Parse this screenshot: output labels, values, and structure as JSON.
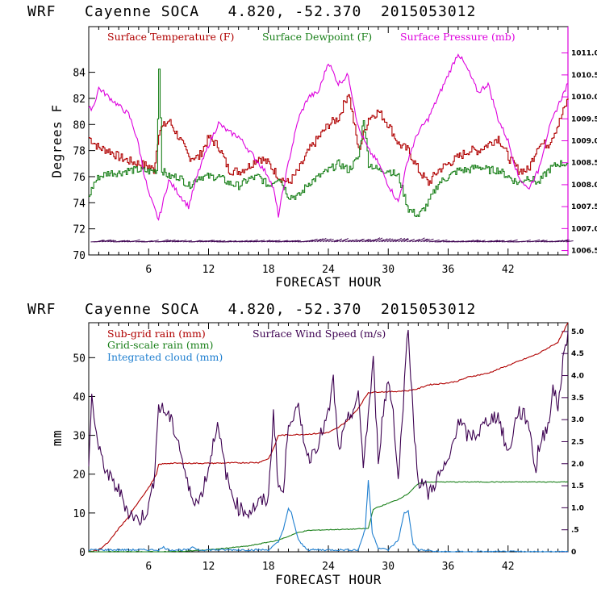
{
  "chart_data": [
    {
      "type": "line",
      "title": "WRF   Cayenne SOCA   4.820, -52.370  2015053012",
      "xlabel": "FORECAST HOUR",
      "ylabel": "Degrees F",
      "xlim": [
        0,
        48
      ],
      "ylim": [
        70,
        87.5
      ],
      "y2lim": [
        1006.4,
        1011.6
      ],
      "xticks": [
        "6",
        "12",
        "18",
        "24",
        "30",
        "36",
        "42"
      ],
      "yticks": [
        "70",
        "72",
        "74",
        "76",
        "78",
        "80",
        "82",
        "84"
      ],
      "y2ticks": [
        "1006.5",
        "1007.0",
        "1007.5",
        "1008.0",
        "1008.5",
        "1009.0",
        "1009.5",
        "1010.0",
        "1010.5",
        "1011.0"
      ],
      "colors": {
        "temperature": "#b00000",
        "dewpoint": "#1a801a",
        "pressure": "#dd00dd",
        "wind": "#3c0050"
      },
      "series": [
        {
          "name": "Surface Temperature (F)",
          "axis": "left",
          "x": [
            0,
            1,
            2,
            3,
            4,
            5,
            6,
            6.5,
            7,
            8,
            9,
            10,
            11,
            12,
            13,
            14,
            15,
            16,
            17,
            18,
            19,
            20,
            21,
            22,
            23,
            24,
            25,
            26,
            27,
            28,
            29,
            30,
            31,
            32,
            33,
            34,
            35,
            36,
            37,
            38,
            39,
            40,
            41,
            42,
            43,
            44,
            45,
            46,
            47,
            48
          ],
          "values": [
            79,
            78.2,
            78,
            77.5,
            77.2,
            77,
            76.8,
            76.5,
            79.5,
            80.3,
            79,
            77.5,
            77.5,
            79,
            78.3,
            76.5,
            76.4,
            76.8,
            77.5,
            77,
            76,
            75.5,
            76.5,
            78,
            79,
            80,
            80.5,
            82.5,
            78,
            80.5,
            81,
            80,
            78.5,
            78,
            76.5,
            75.5,
            76.5,
            77,
            77.5,
            78,
            78,
            78.5,
            79,
            77.5,
            76.5,
            76.5,
            78.5,
            78.5,
            80,
            82
          ]
        },
        {
          "name": "Surface Dewpoint (F)",
          "axis": "left",
          "x": [
            0,
            0.5,
            1,
            2,
            3,
            4,
            5,
            6,
            6.8,
            7,
            7.3,
            8,
            9,
            10,
            11,
            12,
            13,
            14,
            15,
            16,
            17,
            18,
            19,
            20,
            21,
            22,
            23,
            24,
            25,
            26,
            27,
            27.5,
            28,
            29,
            30,
            31,
            32,
            33,
            34,
            35,
            36,
            37,
            38,
            39,
            40,
            41,
            42,
            43,
            44,
            45,
            46,
            47,
            48
          ],
          "values": [
            74.5,
            75.5,
            76,
            76.3,
            76.3,
            76.5,
            76.5,
            76.4,
            76.5,
            84.5,
            76.5,
            76,
            76,
            75.3,
            76,
            76,
            76,
            75.5,
            75.3,
            75.8,
            76,
            75.3,
            76,
            74.5,
            74.5,
            75.5,
            76,
            76.5,
            77,
            76.5,
            77.5,
            80.5,
            77,
            76.5,
            76.5,
            76,
            73.5,
            73,
            74,
            75.5,
            76,
            76.5,
            76.5,
            76.8,
            76.5,
            76.5,
            76,
            75.5,
            76,
            75.5,
            76.5,
            77,
            77
          ]
        },
        {
          "name": "Surface Pressure (mb)",
          "axis": "right",
          "x": [
            0,
            0.5,
            1,
            2,
            3,
            4,
            4.5,
            5,
            5.5,
            6,
            7,
            8,
            9,
            10,
            11,
            12,
            13,
            14,
            15,
            16,
            17,
            18,
            18.5,
            19,
            20,
            21,
            22,
            23,
            24,
            25,
            26,
            27,
            28,
            29,
            30,
            31,
            32,
            33,
            34,
            35,
            36,
            37,
            38,
            39,
            40,
            41,
            42,
            43,
            44,
            45,
            46,
            47,
            48
          ],
          "values": [
            1009.7,
            1009.8,
            1010.2,
            1010.0,
            1009.8,
            1009.6,
            1009.3,
            1008.9,
            1008.3,
            1007.8,
            1007.2,
            1008.1,
            1007.8,
            1007.5,
            1008.3,
            1008.9,
            1009.4,
            1009.2,
            1009.1,
            1008.8,
            1008.5,
            1008.2,
            1007.9,
            1007.3,
            1008.5,
            1009.5,
            1010.0,
            1010.1,
            1010.8,
            1010.3,
            1010.5,
            1009.3,
            1008.8,
            1008.5,
            1008.0,
            1007.6,
            1008.6,
            1009.2,
            1009.5,
            1010.0,
            1010.5,
            1011.0,
            1010.6,
            1010.1,
            1010.3,
            1009.5,
            1009.0,
            1008.2,
            1007.9,
            1008.3,
            1009.2,
            1009.8,
            1010.3
          ]
        }
      ]
    },
    {
      "type": "line",
      "title": "WRF   Cayenne SOCA   4.820, -52.370  2015053012",
      "xlabel": "FORECAST HOUR",
      "ylabel": "mm",
      "xlim": [
        0,
        48
      ],
      "ylim": [
        0,
        59
      ],
      "y2lim": [
        0,
        5.2
      ],
      "xticks": [
        "6",
        "12",
        "18",
        "24",
        "30",
        "36",
        "42"
      ],
      "yticks": [
        "0",
        "10",
        "20",
        "30",
        "40",
        "50"
      ],
      "y2ticks": [
        "0",
        ".5",
        "1.0",
        "1.5",
        "2.0",
        "2.5",
        "3.0",
        "3.5",
        "4.0",
        "4.5",
        "5.0"
      ],
      "colors": {
        "subgrid": "#b00000",
        "gridscale": "#1a801a",
        "cloud": "#1f7fd0",
        "wind": "#3c0050"
      },
      "series": [
        {
          "name": "Sub-grid rain (mm)",
          "axis": "left",
          "x": [
            0,
            1,
            2,
            3,
            4,
            5,
            6,
            6.8,
            7,
            8,
            12,
            17,
            18,
            18.5,
            19,
            22,
            24,
            25,
            26,
            27,
            28,
            29,
            30,
            32,
            33,
            34,
            36,
            37,
            38,
            40,
            41,
            42,
            44,
            45,
            46,
            47,
            48
          ],
          "values": [
            0,
            0.5,
            2.5,
            6,
            9,
            13,
            16.5,
            20,
            22.5,
            22.8,
            22.8,
            23,
            24,
            26.5,
            30,
            30.3,
            30.7,
            32,
            34,
            37,
            41,
            41.2,
            41.2,
            41.5,
            42,
            43,
            43.5,
            44,
            45,
            46,
            47,
            48,
            50,
            51,
            52.5,
            54,
            59
          ]
        },
        {
          "name": "Grid-scale rain (mm)",
          "axis": "left",
          "x": [
            0,
            6,
            8,
            10,
            12,
            14,
            16,
            17,
            18,
            19,
            20,
            21,
            22,
            24,
            26,
            27,
            28,
            28.5,
            29,
            30,
            31,
            32,
            33,
            34,
            36,
            40,
            42,
            45,
            48
          ],
          "values": [
            0,
            0,
            0,
            0.2,
            0.5,
            1,
            1.5,
            2,
            2.5,
            3,
            4,
            5,
            5.5,
            5.7,
            5.8,
            5.9,
            6,
            11,
            11.5,
            12.5,
            13.5,
            15,
            17.5,
            18,
            18,
            18,
            18,
            18,
            18
          ]
        },
        {
          "name": "Integrated cloud (mm)",
          "axis": "left",
          "x": [
            0,
            6,
            7,
            7.5,
            8,
            10,
            10.5,
            11,
            18,
            19,
            19.5,
            20,
            20.3,
            21,
            21.5,
            22,
            27,
            27.7,
            28,
            28.4,
            29,
            30,
            31,
            31.6,
            32,
            32.5,
            33,
            34,
            35,
            48
          ],
          "values": [
            0.5,
            0.5,
            0.5,
            1.2,
            0.5,
            0.5,
            1.2,
            0.5,
            0.5,
            2.5,
            6,
            11,
            10,
            3,
            1.5,
            0.5,
            0.5,
            6,
            18.5,
            5,
            1,
            0.5,
            3,
            10,
            10.5,
            2,
            0.5,
            0.3,
            0,
            0
          ]
        },
        {
          "name": "Surface Wind Speed (m/s)",
          "axis": "right",
          "x": [
            0,
            0.3,
            1,
            2,
            3,
            4,
            5,
            6,
            6.5,
            7,
            8,
            9,
            10,
            11,
            12,
            12.8,
            13,
            14,
            15,
            16,
            17,
            18,
            18.5,
            19,
            19.5,
            20,
            21,
            22,
            23,
            24,
            24.5,
            25,
            26,
            27,
            27.5,
            28,
            28.5,
            29,
            29.5,
            30,
            30.5,
            31,
            32,
            32.5,
            33,
            33.5,
            34,
            35,
            36,
            37,
            38,
            39,
            40,
            41,
            42,
            43,
            44,
            44.8,
            45,
            46,
            46.5,
            47,
            47.5,
            48
          ],
          "values": [
            2.0,
            3.5,
            2.3,
            1.7,
            1.4,
            0.9,
            0.7,
            1.0,
            1.6,
            3.3,
            3.1,
            2.5,
            1.4,
            1.1,
            1.9,
            2.9,
            2.7,
            1.5,
            1.0,
            0.9,
            1.1,
            1.2,
            3.2,
            1.5,
            1.3,
            3.0,
            3.2,
            2.1,
            2.5,
            3.1,
            3.9,
            2.3,
            3.0,
            3.5,
            2.0,
            3.1,
            4.3,
            2.1,
            3.2,
            3.9,
            3.2,
            1.6,
            5.2,
            3.0,
            1.6,
            1.6,
            1.3,
            1.7,
            2.0,
            3.0,
            2.6,
            2.7,
            3.0,
            3.1,
            2.2,
            3.2,
            3.0,
            1.8,
            2.3,
            2.9,
            3.7,
            3.3,
            4.3,
            5.0
          ]
        }
      ]
    }
  ]
}
